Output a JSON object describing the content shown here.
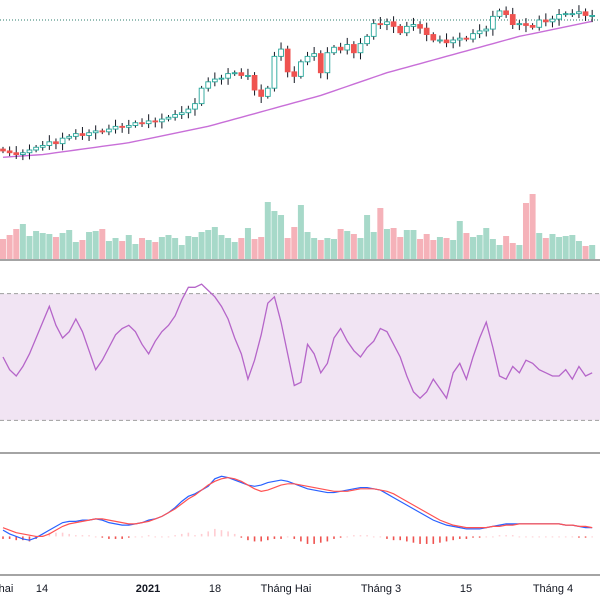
{
  "colors": {
    "up": "#ffffff",
    "up_border": "#26a69a",
    "down": "#ef5350",
    "wick": "#131722",
    "vol_up": "#a7d9c9",
    "vol_down": "#f5b2b9",
    "ma": "#c86fd8",
    "price_line": "#2e7d6e",
    "rsi_line": "#b565c9",
    "rsi_band": "#f1e4f3",
    "rsi_band_border": "#9e9e9e",
    "macd": "#2962ff",
    "signal": "#ff5252",
    "hist_up": "#ffcdd2",
    "hist_down": "#ef5350",
    "pane_border": "#4a4a4a"
  },
  "chart_data": [
    {
      "type": "candlestick",
      "panel": "price",
      "x_tick_labels": [
        "hai",
        "14",
        "2021",
        "18",
        "Tháng Hai",
        "Tháng 3",
        "15",
        "Tháng 4"
      ],
      "open": [
        20.6,
        20.4,
        20.2,
        20.0,
        20.2,
        20.5,
        20.8,
        21.0,
        21.4,
        21.2,
        21.8,
        22.0,
        22.3,
        22.1,
        22.4,
        22.6,
        22.5,
        22.8,
        23.1,
        23.0,
        23.2,
        23.5,
        23.4,
        23.7,
        23.6,
        23.9,
        24.1,
        24.4,
        24.6,
        25.0,
        25.6,
        27.3,
        28.0,
        28.3,
        28.4,
        28.9,
        29.0,
        28.7,
        28.7,
        27.1,
        26.4,
        27.3,
        30.8,
        31.6,
        29.1,
        28.6,
        30.2,
        30.8,
        31.1,
        29.0,
        31.2,
        31.8,
        31.5,
        32.1,
        31.2,
        32.2,
        33.0,
        34.4,
        34.3,
        34.6,
        34.1,
        33.4,
        34.1,
        34.3,
        33.9,
        33.2,
        32.6,
        32.6,
        32.3,
        32.6,
        32.8,
        32.7,
        33.3,
        33.6,
        33.8,
        35.2,
        35.8,
        35.4,
        34.3,
        34.4,
        34.2,
        34.0,
        34.8,
        34.6,
        34.9,
        35.4,
        35.5,
        35.5,
        35.7,
        35.3
      ],
      "close": [
        20.4,
        20.2,
        20.0,
        20.2,
        20.5,
        20.8,
        21.0,
        21.4,
        21.2,
        21.8,
        22.0,
        22.3,
        22.1,
        22.4,
        22.6,
        22.5,
        22.8,
        23.1,
        23.0,
        23.2,
        23.5,
        23.4,
        23.7,
        23.6,
        23.9,
        24.1,
        24.4,
        24.6,
        25.0,
        25.6,
        27.3,
        28.0,
        28.3,
        28.4,
        28.9,
        29.0,
        28.7,
        28.7,
        27.1,
        26.4,
        27.3,
        30.8,
        31.6,
        29.1,
        28.6,
        30.2,
        30.8,
        31.1,
        29.0,
        31.2,
        31.8,
        31.5,
        32.1,
        31.2,
        32.2,
        33.0,
        34.4,
        34.3,
        34.6,
        34.1,
        33.4,
        34.1,
        34.3,
        33.9,
        33.2,
        32.6,
        32.6,
        32.3,
        32.6,
        32.8,
        32.7,
        33.3,
        33.6,
        33.8,
        35.2,
        35.8,
        35.4,
        34.3,
        34.4,
        34.2,
        34.0,
        34.8,
        34.6,
        34.9,
        35.4,
        35.5,
        35.5,
        35.7,
        35.3,
        35.3
      ],
      "ma": [
        19.7,
        19.75,
        19.8,
        19.85,
        19.9,
        19.95,
        20.0,
        20.1,
        20.2,
        20.3,
        20.4,
        20.5,
        20.6,
        20.7,
        20.8,
        20.9,
        21.0,
        21.1,
        21.2,
        21.3,
        21.45,
        21.6,
        21.75,
        21.9,
        22.05,
        22.2,
        22.35,
        22.5,
        22.65,
        22.8,
        22.95,
        23.1,
        23.3,
        23.5,
        23.7,
        23.9,
        24.1,
        24.3,
        24.5,
        24.7,
        24.9,
        25.1,
        25.3,
        25.5,
        25.7,
        25.9,
        26.1,
        26.3,
        26.5,
        26.75,
        27.0,
        27.25,
        27.5,
        27.75,
        28.0,
        28.25,
        28.5,
        28.75,
        29.0,
        29.2,
        29.4,
        29.6,
        29.8,
        30.0,
        30.2,
        30.4,
        30.6,
        30.8,
        31.0,
        31.2,
        31.4,
        31.6,
        31.8,
        32.0,
        32.2,
        32.4,
        32.6,
        32.8,
        33.0,
        33.15,
        33.3,
        33.45,
        33.6,
        33.75,
        33.9,
        34.05,
        34.2,
        34.35,
        34.5,
        34.65
      ],
      "price_line": 34.8,
      "ylim": [
        15.0,
        37.0
      ]
    },
    {
      "type": "bar",
      "panel": "volume",
      "values": [
        20,
        24,
        30,
        35,
        23,
        28,
        26,
        25,
        22,
        26,
        29,
        17,
        19,
        27,
        28,
        30,
        18,
        21,
        18,
        24,
        15,
        21,
        19,
        17,
        22,
        24,
        21,
        14,
        23,
        22,
        27,
        29,
        32,
        24,
        21,
        17,
        21,
        31,
        20,
        22,
        57,
        48,
        44,
        21,
        32,
        54,
        27,
        21,
        19,
        21,
        20,
        30,
        28,
        25,
        21,
        44,
        27,
        51,
        30,
        31,
        22,
        29,
        29,
        20,
        25,
        19,
        22,
        21,
        19,
        38,
        26,
        22,
        24,
        31,
        20,
        14,
        23,
        16,
        14,
        56,
        65,
        26,
        21,
        25,
        22,
        23,
        24,
        18,
        13,
        14
      ],
      "ylim": [
        0,
        70
      ]
    },
    {
      "type": "line",
      "panel": "rsi",
      "band": [
        30,
        70
      ],
      "values": [
        50,
        46,
        44,
        47,
        51,
        56,
        61,
        66,
        60,
        56,
        58,
        62,
        58,
        52,
        46,
        49,
        53,
        57,
        59,
        60,
        58,
        54,
        51,
        55,
        58,
        60,
        63,
        68,
        72,
        72,
        73,
        71,
        69,
        66,
        62,
        56,
        51,
        43,
        49,
        57,
        67,
        69,
        61,
        51,
        41,
        42,
        54,
        51,
        45,
        48,
        56,
        59,
        55,
        52,
        50,
        53,
        55,
        59,
        58,
        54,
        50,
        44,
        39,
        37,
        39,
        43,
        40,
        37,
        45,
        48,
        43,
        50,
        56,
        61,
        53,
        44,
        43,
        47,
        45,
        49,
        48,
        46,
        45,
        44,
        44,
        46,
        43,
        47,
        44,
        45
      ],
      "ylim": [
        20,
        80
      ]
    },
    {
      "type": "line",
      "panel": "macd",
      "series": [
        {
          "values": [
            0.05,
            0.02,
            0.0,
            -0.02,
            -0.03,
            -0.01,
            0.02,
            0.05,
            0.08,
            0.11,
            0.12,
            0.12,
            0.13,
            0.13,
            0.14,
            0.13,
            0.11,
            0.1,
            0.09,
            0.09,
            0.1,
            0.11,
            0.13,
            0.14,
            0.16,
            0.19,
            0.23,
            0.28,
            0.32,
            0.34,
            0.37,
            0.4,
            0.46,
            0.48,
            0.47,
            0.45,
            0.43,
            0.41,
            0.4,
            0.41,
            0.43,
            0.44,
            0.45,
            0.44,
            0.42,
            0.4,
            0.38,
            0.37,
            0.36,
            0.35,
            0.35,
            0.36,
            0.37,
            0.38,
            0.39,
            0.39,
            0.38,
            0.37,
            0.34,
            0.31,
            0.28,
            0.25,
            0.22,
            0.19,
            0.16,
            0.13,
            0.11,
            0.09,
            0.08,
            0.07,
            0.06,
            0.06,
            0.06,
            0.07,
            0.08,
            0.09,
            0.1,
            0.1,
            0.1,
            0.1,
            0.1,
            0.1,
            0.1,
            0.1,
            0.1,
            0.09,
            0.09,
            0.08,
            0.07,
            0.07
          ]
        },
        {
          "values": [
            0.07,
            0.05,
            0.03,
            0.02,
            0.01,
            0.0,
            0.0,
            0.02,
            0.05,
            0.08,
            0.1,
            0.11,
            0.12,
            0.13,
            0.14,
            0.14,
            0.13,
            0.12,
            0.11,
            0.1,
            0.1,
            0.11,
            0.12,
            0.14,
            0.16,
            0.19,
            0.22,
            0.26,
            0.3,
            0.33,
            0.37,
            0.41,
            0.44,
            0.46,
            0.47,
            0.46,
            0.44,
            0.41,
            0.38,
            0.36,
            0.37,
            0.39,
            0.41,
            0.42,
            0.42,
            0.41,
            0.4,
            0.39,
            0.38,
            0.37,
            0.36,
            0.36,
            0.36,
            0.37,
            0.38,
            0.38,
            0.38,
            0.37,
            0.36,
            0.34,
            0.31,
            0.28,
            0.25,
            0.22,
            0.19,
            0.16,
            0.13,
            0.11,
            0.09,
            0.08,
            0.07,
            0.07,
            0.07,
            0.07,
            0.08,
            0.08,
            0.09,
            0.09,
            0.1,
            0.1,
            0.1,
            0.1,
            0.1,
            0.1,
            0.1,
            0.09,
            0.09,
            0.08,
            0.08,
            0.07
          ]
        }
      ],
      "histogram": [
        -0.02,
        -0.02,
        -0.03,
        -0.03,
        -0.04,
        -0.02,
        0.01,
        0.03,
        0.03,
        0.03,
        0.02,
        0.01,
        0.01,
        0.01,
        0.0,
        -0.01,
        -0.02,
        -0.02,
        -0.02,
        -0.01,
        0.0,
        0.0,
        0.01,
        0.0,
        0.0,
        0.0,
        0.01,
        0.02,
        0.03,
        0.01,
        0.02,
        0.04,
        0.06,
        0.05,
        0.04,
        0.02,
        -0.01,
        -0.03,
        -0.04,
        -0.04,
        -0.03,
        -0.02,
        -0.02,
        0.0,
        -0.02,
        -0.04,
        -0.06,
        -0.06,
        -0.05,
        -0.04,
        -0.02,
        -0.01,
        0.0,
        0.01,
        0.01,
        0.01,
        0.0,
        0.0,
        -0.02,
        -0.03,
        -0.03,
        -0.04,
        -0.05,
        -0.06,
        -0.06,
        -0.06,
        -0.05,
        -0.04,
        -0.03,
        -0.02,
        -0.02,
        -0.01,
        -0.01,
        0.0,
        0.0,
        0.01,
        0.01,
        0.01,
        0.0,
        0.0,
        0.0,
        0.0,
        0.0,
        0.0,
        0.0,
        0.0,
        0.0,
        -0.01,
        -0.01,
        0.0
      ],
      "ylim": [
        -0.3,
        0.65
      ]
    }
  ]
}
